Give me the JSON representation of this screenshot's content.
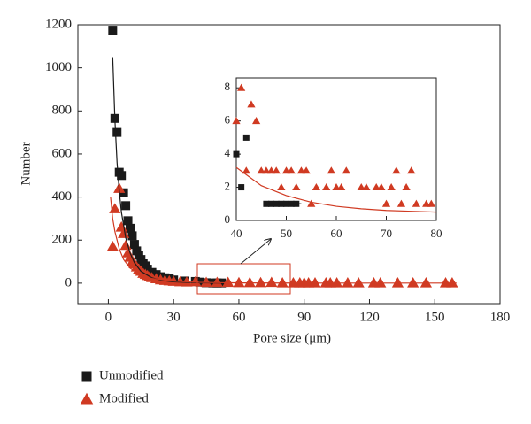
{
  "chart_data": [
    {
      "type": "scatter",
      "x_label": "Pore size (μm)",
      "y_label": "Number",
      "xlim": [
        -14,
        180
      ],
      "ylim": [
        -95,
        1200
      ],
      "xticks": [
        0,
        30,
        60,
        90,
        120,
        150,
        180
      ],
      "yticks": [
        0,
        200,
        400,
        600,
        800,
        1000,
        1200
      ],
      "legend": "below",
      "series": [
        {
          "name": "Unmodified",
          "color": "#1a1a1a",
          "marker": "square",
          "x": [
            2,
            3,
            4,
            5,
            6,
            7,
            8,
            9,
            10,
            11,
            12,
            13,
            14,
            15,
            16,
            17,
            18,
            20,
            22,
            24,
            26,
            28,
            30,
            35,
            40,
            42,
            45,
            48,
            50,
            52
          ],
          "values": [
            1175,
            765,
            700,
            515,
            500,
            420,
            360,
            290,
            255,
            220,
            180,
            150,
            130,
            110,
            90,
            80,
            65,
            50,
            40,
            30,
            25,
            20,
            15,
            10,
            8,
            5,
            2,
            1,
            1,
            1
          ]
        },
        {
          "name": "Modified",
          "color": "#d03a22",
          "marker": "triangle",
          "x": [
            2,
            3,
            5,
            6,
            7,
            8,
            9,
            10,
            11,
            12,
            13,
            14,
            15,
            16,
            17,
            18,
            19,
            20,
            22,
            24,
            26,
            28,
            30,
            33,
            36,
            40,
            45,
            50,
            55,
            60,
            65,
            70,
            75,
            80,
            85,
            88,
            90,
            92,
            95,
            100,
            102,
            105,
            110,
            115,
            122,
            125,
            133,
            140,
            146,
            155,
            158
          ],
          "values": [
            170,
            345,
            440,
            260,
            230,
            175,
            140,
            120,
            100,
            90,
            75,
            65,
            55,
            45,
            40,
            35,
            30,
            25,
            20,
            15,
            12,
            10,
            8,
            6,
            5,
            6,
            3,
            3,
            3,
            2,
            2,
            2,
            3,
            1,
            1,
            1,
            1,
            1,
            1,
            1,
            1,
            1,
            1,
            1,
            1,
            1,
            1,
            1,
            1,
            1,
            1
          ]
        },
        {
          "color": "#1a1a1a",
          "marker": "line",
          "x": [
            2,
            3,
            4,
            5,
            6,
            8,
            10,
            12,
            15,
            20,
            25,
            30,
            40,
            52
          ],
          "values": [
            1050,
            760,
            560,
            430,
            330,
            210,
            140,
            95,
            55,
            25,
            12,
            6,
            2,
            1
          ]
        },
        {
          "color": "#d03a22",
          "marker": "line",
          "x": [
            1,
            2,
            3,
            5,
            7,
            10,
            15,
            20,
            30,
            40,
            60,
            80,
            100,
            120,
            140,
            160
          ],
          "values": [
            400,
            300,
            240,
            160,
            110,
            70,
            38,
            22,
            9,
            4,
            1,
            0.5,
            0.4,
            0.3,
            0.3,
            0.3
          ]
        }
      ]
    },
    {
      "type": "scatter",
      "xlim": [
        40,
        80
      ],
      "ylim": [
        0,
        8.6
      ],
      "xticks": [
        40,
        50,
        60,
        70,
        80
      ],
      "yticks": [
        0,
        2,
        4,
        6,
        8
      ],
      "series": [
        {
          "color": "#1a1a1a",
          "marker": "square",
          "x": [
            40,
            41,
            42,
            46,
            47,
            48,
            49,
            50,
            51,
            52
          ],
          "values": [
            4,
            2,
            5,
            1,
            1,
            1,
            1,
            1,
            1,
            1
          ]
        },
        {
          "color": "#d03a22",
          "marker": "triangle",
          "x": [
            40,
            41,
            42,
            43,
            44,
            45,
            46,
            47,
            48,
            49,
            50,
            51,
            52,
            53,
            54,
            55,
            56,
            58,
            59,
            60,
            61,
            62,
            65,
            66,
            68,
            69,
            70,
            71,
            72,
            73,
            74,
            75,
            76,
            78,
            79
          ],
          "values": [
            6,
            8,
            3,
            7,
            6,
            3,
            3,
            3,
            3,
            2,
            3,
            3,
            2,
            3,
            3,
            1,
            2,
            2,
            3,
            2,
            2,
            3,
            2,
            2,
            2,
            2,
            1,
            2,
            3,
            1,
            2,
            3,
            1,
            1,
            1
          ]
        },
        {
          "color": "#d03a22",
          "marker": "line",
          "x": [
            40,
            45,
            50,
            55,
            60,
            65,
            70,
            75,
            80
          ],
          "values": [
            3.2,
            2.1,
            1.5,
            1.1,
            0.85,
            0.7,
            0.6,
            0.55,
            0.5
          ]
        },
        {
          "color": "#1a1a1a",
          "marker": "line",
          "x": [
            46,
            53
          ],
          "values": [
            1,
            1
          ]
        }
      ]
    }
  ]
}
